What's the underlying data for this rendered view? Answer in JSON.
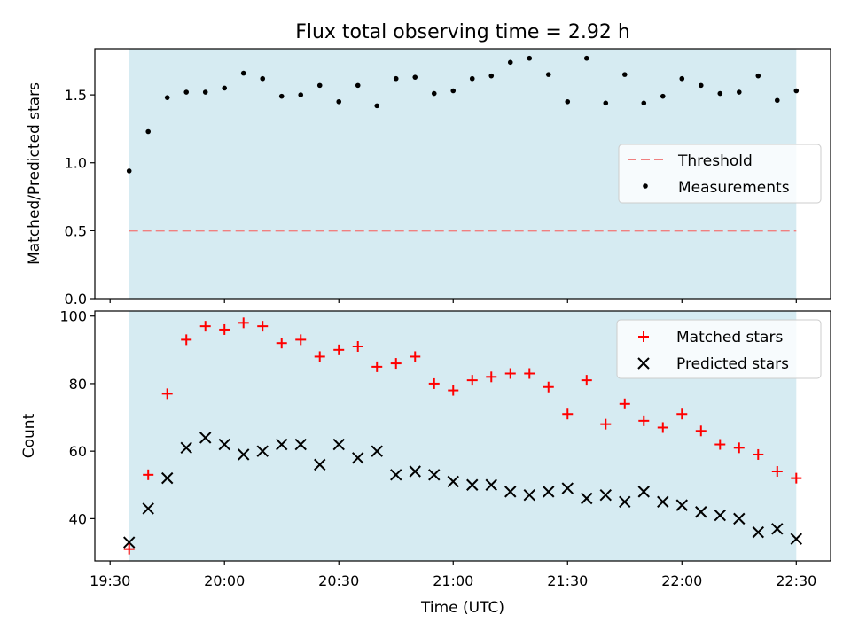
{
  "chart_data": {
    "type": "scatter",
    "title": "Flux total observing time = 2.92 h",
    "xlabel": "Time (UTC)",
    "x_ticks": [
      "19:30",
      "20:00",
      "20:30",
      "21:00",
      "21:30",
      "22:00",
      "22:30"
    ],
    "x_tick_minutes": [
      0,
      30,
      60,
      90,
      120,
      150,
      180
    ],
    "xlim_minutes": [
      -4,
      189
    ],
    "shaded_span_minutes": [
      5,
      180
    ],
    "colors": {
      "shade": "#add8e6",
      "threshold": "#f08080",
      "matched": "#ff0000",
      "predicted": "#000000",
      "measurement": "#000000"
    },
    "x_minutes": [
      5,
      10,
      15,
      20,
      25,
      30,
      35,
      40,
      45,
      50,
      55,
      60,
      65,
      70,
      75,
      80,
      85,
      90,
      95,
      100,
      105,
      110,
      115,
      120,
      125,
      130,
      135,
      140,
      145,
      150,
      155,
      160,
      165,
      170,
      175,
      180
    ],
    "top": {
      "ylabel": "Matched/Predicted stars",
      "ylim": [
        0,
        1.84
      ],
      "y_ticks": [
        "0.0",
        "0.5",
        "1.0",
        "1.5"
      ],
      "y_tick_values": [
        0,
        0.5,
        1.0,
        1.5
      ],
      "threshold": 0.5,
      "legend": {
        "threshold": "Threshold",
        "measurements": "Measurements",
        "position": "center-right"
      },
      "ratios": [
        0.94,
        1.23,
        1.48,
        1.52,
        1.52,
        1.55,
        1.66,
        1.62,
        1.49,
        1.5,
        1.57,
        1.45,
        1.57,
        1.42,
        1.62,
        1.63,
        1.51,
        1.53,
        1.62,
        1.64,
        1.74,
        1.77,
        1.65,
        1.45,
        1.77,
        1.44,
        1.65,
        1.44,
        1.49,
        1.62,
        1.57,
        1.51,
        1.52,
        1.64,
        1.46,
        1.53
      ]
    },
    "bottom": {
      "ylabel": "Count",
      "ylim": [
        27.5,
        101.5
      ],
      "y_ticks": [
        "40",
        "60",
        "80",
        "100"
      ],
      "y_tick_values": [
        40,
        60,
        80,
        100
      ],
      "legend": {
        "matched": "Matched stars",
        "predicted": "Predicted stars",
        "position": "top-right"
      },
      "matched": [
        31,
        53,
        77,
        93,
        97,
        96,
        98,
        97,
        92,
        93,
        88,
        90,
        91,
        85,
        86,
        88,
        80,
        78,
        81,
        82,
        83,
        83,
        79,
        71,
        81,
        68,
        74,
        69,
        67,
        71,
        66,
        62,
        61,
        59,
        54,
        52
      ],
      "predicted": [
        33,
        43,
        52,
        61,
        64,
        62,
        59,
        60,
        62,
        62,
        56,
        62,
        58,
        60,
        53,
        54,
        53,
        51,
        50,
        50,
        48,
        47,
        48,
        49,
        46,
        47,
        45,
        48,
        45,
        44,
        42,
        41,
        40,
        36,
        37,
        34
      ]
    }
  }
}
